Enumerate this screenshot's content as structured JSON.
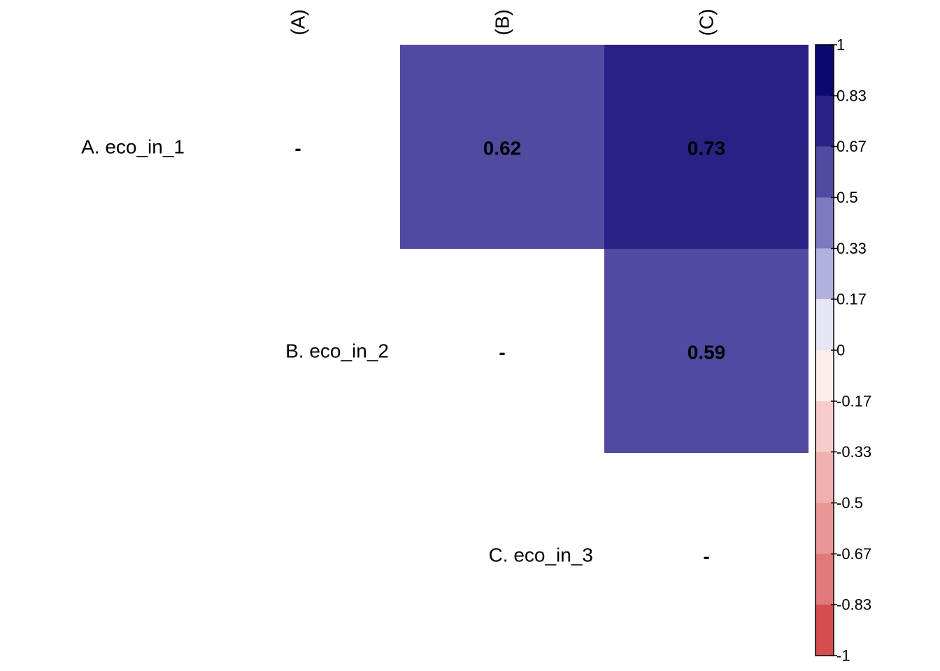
{
  "chart_data": {
    "type": "heatmap",
    "title": "",
    "row_labels": [
      "A. eco_in_1",
      "B. eco_in_2",
      "C. eco_in_3"
    ],
    "col_labels": [
      "(A)",
      "(B)",
      "(C)"
    ],
    "cells": [
      {
        "row": 0,
        "col": 0,
        "value": null,
        "text": "-"
      },
      {
        "row": 0,
        "col": 1,
        "value": 0.62,
        "text": "0.62"
      },
      {
        "row": 0,
        "col": 2,
        "value": 0.73,
        "text": "0.73"
      },
      {
        "row": 1,
        "col": 1,
        "value": null,
        "text": "-"
      },
      {
        "row": 1,
        "col": 2,
        "value": 0.59,
        "text": "0.59"
      },
      {
        "row": 2,
        "col": 2,
        "value": null,
        "text": "-"
      }
    ],
    "colorbar": {
      "range": [
        -1,
        1
      ],
      "ticks": [
        {
          "value": 1,
          "label": "1"
        },
        {
          "value": 0.833,
          "label": "0.83"
        },
        {
          "value": 0.667,
          "label": "0.67"
        },
        {
          "value": 0.5,
          "label": "0.5"
        },
        {
          "value": 0.333,
          "label": "0.33"
        },
        {
          "value": 0.167,
          "label": "0.17"
        },
        {
          "value": 0,
          "label": "0"
        },
        {
          "value": -0.167,
          "label": "-0.17"
        },
        {
          "value": -0.333,
          "label": "-0.33"
        },
        {
          "value": -0.5,
          "label": "-0.5"
        },
        {
          "value": -0.667,
          "label": "-0.67"
        },
        {
          "value": -0.833,
          "label": "-0.83"
        },
        {
          "value": -1,
          "label": "-1"
        }
      ],
      "bins": [
        {
          "from": 0.833,
          "to": 1,
          "color": "#0b0a6e"
        },
        {
          "from": 0.667,
          "to": 0.833,
          "color": "#2a2185"
        },
        {
          "from": 0.5,
          "to": 0.667,
          "color": "#504aa1"
        },
        {
          "from": 0.333,
          "to": 0.5,
          "color": "#7e7abf"
        },
        {
          "from": 0.167,
          "to": 0.333,
          "color": "#b2b0dc"
        },
        {
          "from": 0,
          "to": 0.167,
          "color": "#e5e5f3"
        },
        {
          "from": -0.167,
          "to": 0,
          "color": "#fdeeee"
        },
        {
          "from": -0.333,
          "to": -0.167,
          "color": "#f7cccc"
        },
        {
          "from": -0.5,
          "to": -0.333,
          "color": "#f0b0b0"
        },
        {
          "from": -0.667,
          "to": -0.5,
          "color": "#e99696"
        },
        {
          "from": -0.833,
          "to": -0.667,
          "color": "#e07a7a"
        },
        {
          "from": -1,
          "to": -0.833,
          "color": "#d64d4f"
        }
      ]
    }
  }
}
